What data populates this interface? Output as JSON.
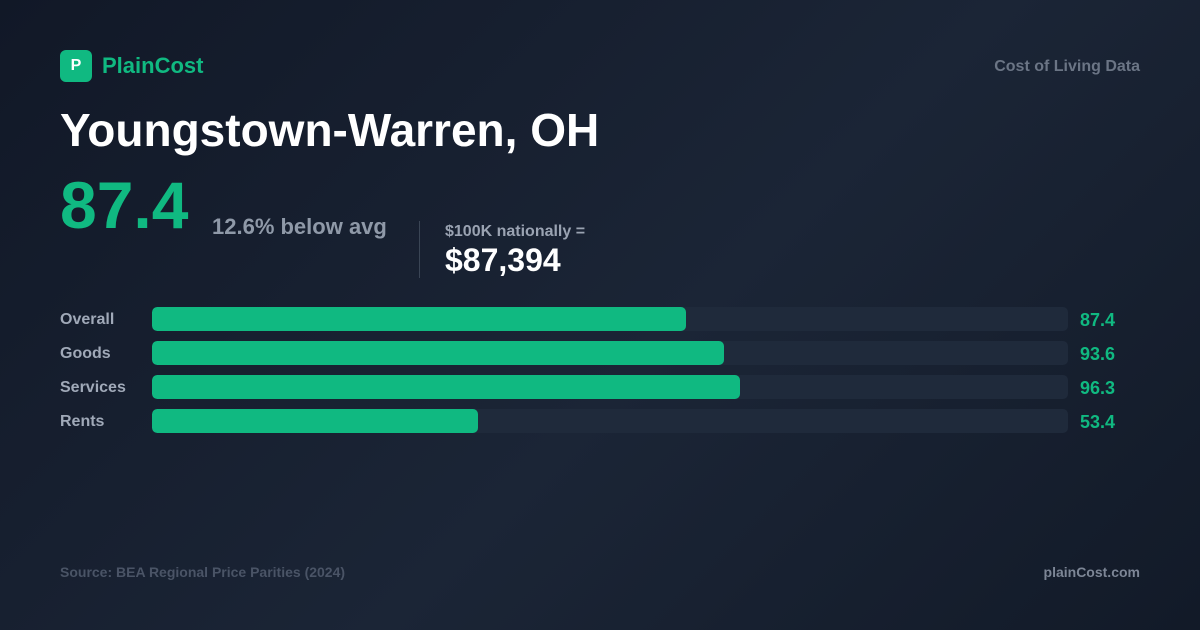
{
  "brand": {
    "logo_letter": "P",
    "name": "PlainCost",
    "tagline": "Cost of Living Data"
  },
  "location": {
    "title": "Youngstown-Warren, OH"
  },
  "summary": {
    "index": "87.4",
    "comparison": "12.6% below avg",
    "equivalent_label": "$100K nationally =",
    "equivalent_value": "$87,394"
  },
  "colors": {
    "accent": "#10b981",
    "background": "#151e2d",
    "track": "#1f2a3b"
  },
  "chart_data": {
    "type": "bar",
    "orientation": "horizontal",
    "categories": [
      "Overall",
      "Goods",
      "Services",
      "Rents"
    ],
    "values": [
      87.4,
      93.6,
      96.3,
      53.4
    ],
    "value_labels": [
      "87.4",
      "93.6",
      "96.3",
      "53.4"
    ],
    "xlim": [
      0,
      150
    ],
    "grid": false
  },
  "footer": {
    "source": "Source: BEA Regional Price Parities (2024)",
    "site": "plainCost.com"
  }
}
